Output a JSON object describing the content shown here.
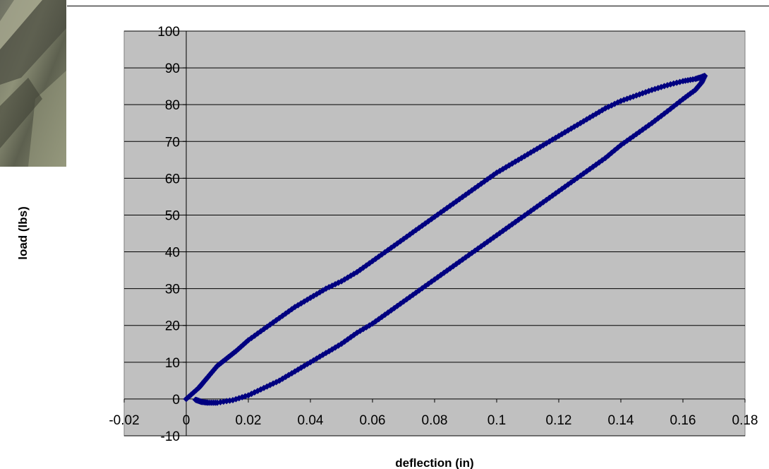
{
  "chart_data": {
    "type": "scatter",
    "title": "",
    "xlabel": "deflection (in)",
    "ylabel": "load (lbs)",
    "xlim": [
      -0.02,
      0.18
    ],
    "ylim": [
      -10,
      100
    ],
    "x_ticks": [
      "-0.02",
      "0",
      "0.02",
      "0.04",
      "0.06",
      "0.08",
      "0.1",
      "0.12",
      "0.14",
      "0.16",
      "0.18"
    ],
    "y_ticks": [
      "-10",
      "0",
      "10",
      "20",
      "30",
      "40",
      "50",
      "60",
      "70",
      "80",
      "90",
      "100"
    ],
    "grid": "horizontal",
    "plot_background": "#c0c0c0",
    "marker": "diamond",
    "marker_color": "#000080",
    "series": [
      {
        "x": [
          0,
          0.004,
          0.005,
          0.007,
          0.01,
          0.013,
          0.016,
          0.02,
          0.025,
          0.03,
          0.035,
          0.04,
          0.045,
          0.05,
          0.055,
          0.06,
          0.065,
          0.07,
          0.075,
          0.08,
          0.085,
          0.09,
          0.095,
          0.1,
          0.105,
          0.11,
          0.115,
          0.12,
          0.125,
          0.13,
          0.135,
          0.14,
          0.145,
          0.15,
          0.155,
          0.16,
          0.164,
          0.166,
          0.167
        ],
        "y": [
          0,
          3,
          4,
          6,
          9,
          11,
          13,
          16,
          19,
          22,
          25,
          27.5,
          30,
          32,
          34.5,
          37.5,
          40.5,
          43.5,
          46.5,
          49.5,
          52.5,
          55.5,
          58.5,
          61.5,
          64,
          66.5,
          69,
          71.5,
          74,
          76.5,
          79,
          81,
          82.5,
          84,
          85.3,
          86.4,
          87,
          87.5,
          87.8
        ]
      },
      {
        "x": [
          0.167,
          0.166,
          0.164,
          0.16,
          0.155,
          0.15,
          0.145,
          0.14,
          0.135,
          0.13,
          0.125,
          0.12,
          0.115,
          0.11,
          0.105,
          0.1,
          0.095,
          0.09,
          0.085,
          0.08,
          0.075,
          0.07,
          0.065,
          0.06,
          0.055,
          0.05,
          0.045,
          0.04,
          0.035,
          0.03,
          0.025,
          0.02,
          0.015,
          0.01,
          0.007,
          0.005,
          0.004,
          0.003
        ],
        "y": [
          87.8,
          86,
          84,
          81.5,
          78.2,
          75,
          72,
          69,
          65.5,
          62.5,
          59.5,
          56.5,
          53.5,
          50.5,
          47.5,
          44.5,
          41.5,
          38.5,
          35.5,
          32.5,
          29.5,
          26.5,
          23.5,
          20.5,
          18,
          15,
          12.5,
          10,
          7.5,
          5,
          3,
          1,
          -0.3,
          -1,
          -1,
          -0.8,
          -0.5,
          -0.2
        ]
      }
    ]
  }
}
